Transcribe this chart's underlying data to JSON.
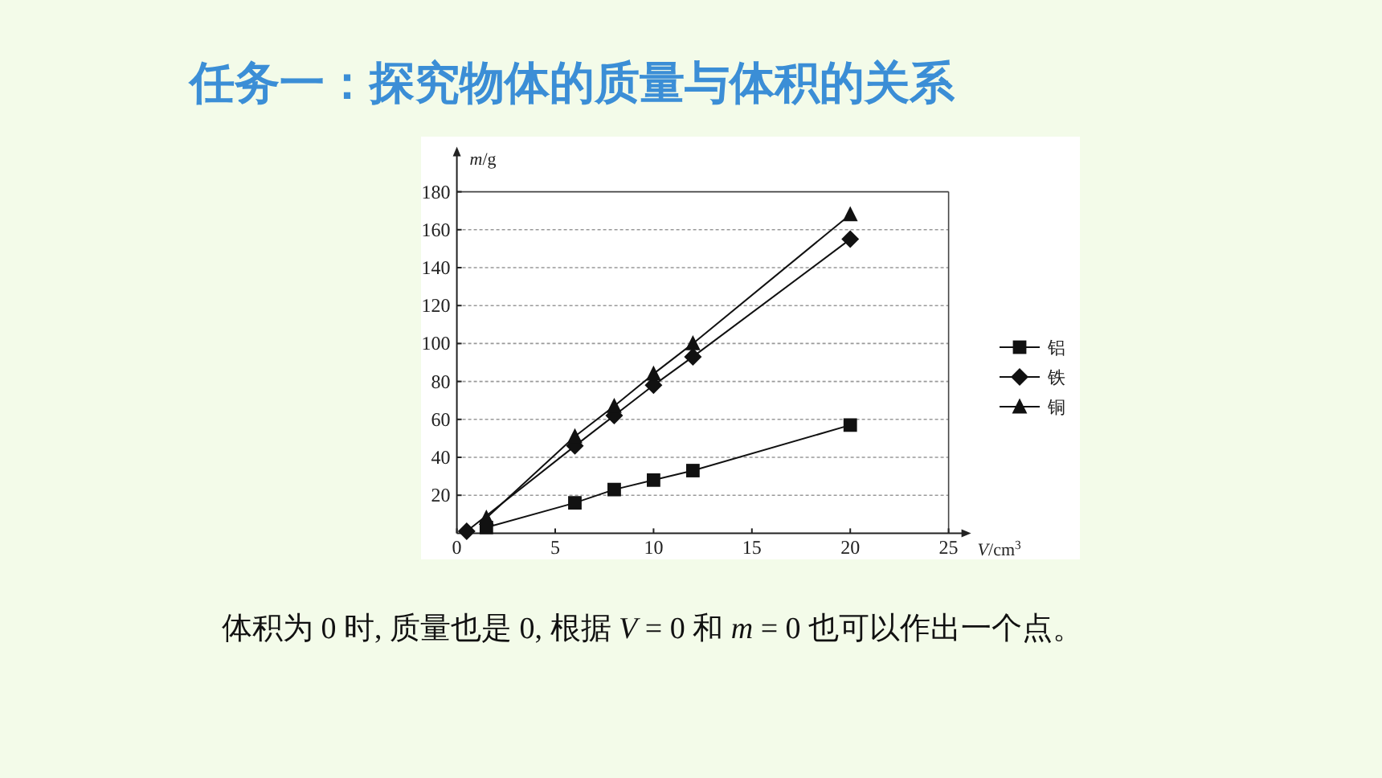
{
  "chart_data": {
    "type": "line",
    "title": "任务一：探究物体的质量与体积的关系",
    "xlabel": "*V*/cm$^{3}$",
    "ylabel": "*m*/g",
    "annotations": [
      "体积为 0 时, 质量也是 0, 根据 *V* = 0 和 *m* = 0 也可以作出一个点。"
    ],
    "x": [
      0.5,
      1.5,
      6,
      8,
      10,
      12,
      20
    ],
    "series": [
      {
        "name": "铝",
        "color": "#111111",
        "marker": "square",
        "values": [
          null,
          3,
          16,
          23,
          28,
          33,
          57
        ]
      },
      {
        "name": "铁",
        "color": "#111111",
        "marker": "diamond",
        "values": [
          1,
          null,
          46,
          62,
          78,
          93,
          155
        ]
      },
      {
        "name": "铜",
        "color": "#111111",
        "marker": "triangle",
        "values": [
          null,
          8,
          51,
          67,
          84,
          100,
          168
        ]
      }
    ],
    "xlim": [
      0,
      25
    ],
    "xticks": [
      0,
      5,
      10,
      15,
      20,
      25
    ],
    "ylim": [
      0,
      180
    ],
    "yticks": [
      20,
      40,
      60,
      80,
      100,
      120,
      140,
      160,
      180
    ],
    "grid": "y",
    "legend": "right",
    "line_style": "solid"
  }
}
